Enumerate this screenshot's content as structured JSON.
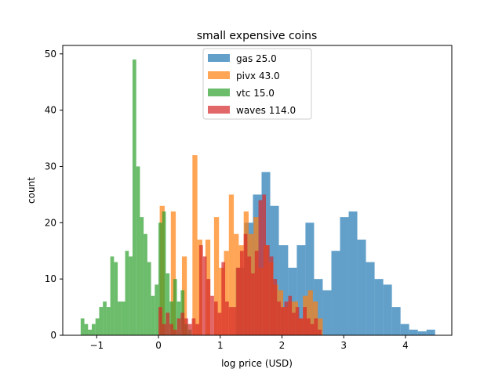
{
  "chart_data": {
    "type": "histogram",
    "title": "small expensive coins",
    "xlabel": "log price (USD)",
    "ylabel": "count",
    "xlim": [
      -1.55,
      4.75
    ],
    "ylim": [
      0,
      51.5
    ],
    "xticks": [
      -1,
      0,
      1,
      2,
      3,
      4
    ],
    "yticks": [
      0,
      10,
      20,
      30,
      40,
      50
    ],
    "grid": false,
    "legend_position": "top-center",
    "series": [
      {
        "name": "gas 25.0",
        "color": "#1f77b4",
        "bins": [
          [
            1.25,
            1.39,
            12
          ],
          [
            1.39,
            1.53,
            20
          ],
          [
            1.53,
            1.67,
            25
          ],
          [
            1.67,
            1.81,
            29
          ],
          [
            1.81,
            1.95,
            23
          ],
          [
            1.95,
            2.1,
            16
          ],
          [
            2.1,
            2.24,
            12
          ],
          [
            2.24,
            2.38,
            16
          ],
          [
            2.38,
            2.52,
            20
          ],
          [
            2.52,
            2.66,
            10
          ],
          [
            2.66,
            2.8,
            8
          ],
          [
            2.8,
            2.94,
            15
          ],
          [
            2.94,
            3.08,
            21
          ],
          [
            3.08,
            3.22,
            22
          ],
          [
            3.22,
            3.36,
            17
          ],
          [
            3.36,
            3.5,
            13
          ],
          [
            3.5,
            3.64,
            10
          ],
          [
            3.64,
            3.78,
            9
          ],
          [
            3.78,
            3.92,
            5
          ],
          [
            3.92,
            4.06,
            2
          ],
          [
            4.06,
            4.2,
            1
          ],
          [
            4.2,
            4.34,
            0.7
          ],
          [
            4.34,
            4.48,
            1
          ]
        ]
      },
      {
        "name": "pivx 43.0",
        "color": "#ff7f0e",
        "bins": [
          [
            0.02,
            0.1,
            23
          ],
          [
            0.2,
            0.28,
            22
          ],
          [
            0.38,
            0.46,
            14
          ],
          [
            0.55,
            0.63,
            32
          ],
          [
            0.63,
            0.71,
            17
          ],
          [
            0.76,
            0.84,
            17
          ],
          [
            0.9,
            0.98,
            21
          ],
          [
            0.98,
            1.06,
            12
          ],
          [
            1.06,
            1.14,
            15
          ],
          [
            1.14,
            1.22,
            25
          ],
          [
            1.22,
            1.3,
            18
          ],
          [
            1.3,
            1.38,
            16
          ],
          [
            1.38,
            1.46,
            22
          ],
          [
            1.46,
            1.54,
            18
          ],
          [
            1.54,
            1.62,
            21
          ],
          [
            1.62,
            1.7,
            12
          ],
          [
            1.7,
            1.78,
            16
          ],
          [
            1.78,
            1.86,
            13
          ],
          [
            1.86,
            1.94,
            9
          ],
          [
            1.94,
            2.02,
            8
          ],
          [
            2.02,
            2.1,
            5
          ],
          [
            2.1,
            2.18,
            6
          ],
          [
            2.18,
            2.26,
            6
          ],
          [
            2.26,
            2.34,
            3
          ],
          [
            2.34,
            2.42,
            7
          ],
          [
            2.42,
            2.5,
            8
          ],
          [
            2.5,
            2.58,
            6
          ],
          [
            2.58,
            2.66,
            3
          ]
        ]
      },
      {
        "name": "vtc 15.0",
        "color": "#2ca02c",
        "bins": [
          [
            -1.26,
            -1.2,
            3
          ],
          [
            -1.2,
            -1.14,
            2
          ],
          [
            -1.14,
            -1.08,
            1
          ],
          [
            -1.08,
            -1.02,
            2
          ],
          [
            -1.02,
            -0.96,
            3
          ],
          [
            -0.96,
            -0.9,
            5
          ],
          [
            -0.9,
            -0.84,
            6
          ],
          [
            -0.84,
            -0.78,
            5
          ],
          [
            -0.78,
            -0.72,
            14
          ],
          [
            -0.72,
            -0.66,
            13
          ],
          [
            -0.66,
            -0.6,
            6
          ],
          [
            -0.6,
            -0.54,
            6
          ],
          [
            -0.54,
            -0.48,
            15
          ],
          [
            -0.48,
            -0.42,
            14
          ],
          [
            -0.42,
            -0.36,
            49
          ],
          [
            -0.36,
            -0.3,
            30
          ],
          [
            -0.3,
            -0.24,
            21
          ],
          [
            -0.24,
            -0.18,
            18
          ],
          [
            -0.18,
            -0.12,
            13
          ],
          [
            -0.12,
            -0.06,
            7
          ],
          [
            -0.06,
            0.0,
            9
          ],
          [
            0.0,
            0.06,
            20
          ],
          [
            0.06,
            0.12,
            22
          ],
          [
            0.12,
            0.18,
            11
          ],
          [
            0.18,
            0.24,
            6
          ],
          [
            0.24,
            0.3,
            10
          ],
          [
            0.3,
            0.36,
            6
          ],
          [
            0.36,
            0.42,
            8
          ],
          [
            0.42,
            0.48,
            2
          ],
          [
            0.48,
            0.54,
            1
          ]
        ]
      },
      {
        "name": "waves 114.0",
        "color": "#d62728",
        "bins": [
          [
            0.0,
            0.06,
            5
          ],
          [
            0.06,
            0.12,
            2
          ],
          [
            0.12,
            0.18,
            4
          ],
          [
            0.18,
            0.24,
            2
          ],
          [
            0.24,
            0.3,
            1
          ],
          [
            0.3,
            0.36,
            3
          ],
          [
            0.36,
            0.42,
            4
          ],
          [
            0.42,
            0.48,
            3
          ],
          [
            0.48,
            0.54,
            2
          ],
          [
            0.54,
            0.6,
            3
          ],
          [
            0.6,
            0.66,
            2
          ],
          [
            0.66,
            0.72,
            16
          ],
          [
            0.72,
            0.78,
            14
          ],
          [
            0.78,
            0.84,
            10
          ],
          [
            0.84,
            0.9,
            7
          ],
          [
            0.9,
            0.96,
            6
          ],
          [
            0.96,
            1.02,
            4
          ],
          [
            1.02,
            1.08,
            13
          ],
          [
            1.08,
            1.14,
            6
          ],
          [
            1.14,
            1.2,
            5
          ],
          [
            1.2,
            1.26,
            5
          ],
          [
            1.26,
            1.32,
            12
          ],
          [
            1.32,
            1.38,
            15
          ],
          [
            1.38,
            1.44,
            18
          ],
          [
            1.44,
            1.5,
            14
          ],
          [
            1.5,
            1.56,
            11
          ],
          [
            1.56,
            1.62,
            15
          ],
          [
            1.62,
            1.68,
            24
          ],
          [
            1.68,
            1.74,
            25
          ],
          [
            1.74,
            1.8,
            16
          ],
          [
            1.8,
            1.86,
            14
          ],
          [
            1.86,
            1.92,
            10
          ],
          [
            1.92,
            1.98,
            6
          ],
          [
            1.98,
            2.04,
            5
          ],
          [
            2.04,
            2.1,
            6
          ],
          [
            2.1,
            2.16,
            7
          ],
          [
            2.16,
            2.22,
            4
          ],
          [
            2.22,
            2.28,
            5
          ],
          [
            2.28,
            2.34,
            3
          ],
          [
            2.34,
            2.4,
            5
          ],
          [
            2.4,
            2.46,
            3
          ],
          [
            2.46,
            2.52,
            2
          ],
          [
            2.52,
            2.58,
            3
          ],
          [
            2.58,
            2.64,
            1
          ]
        ]
      }
    ]
  }
}
